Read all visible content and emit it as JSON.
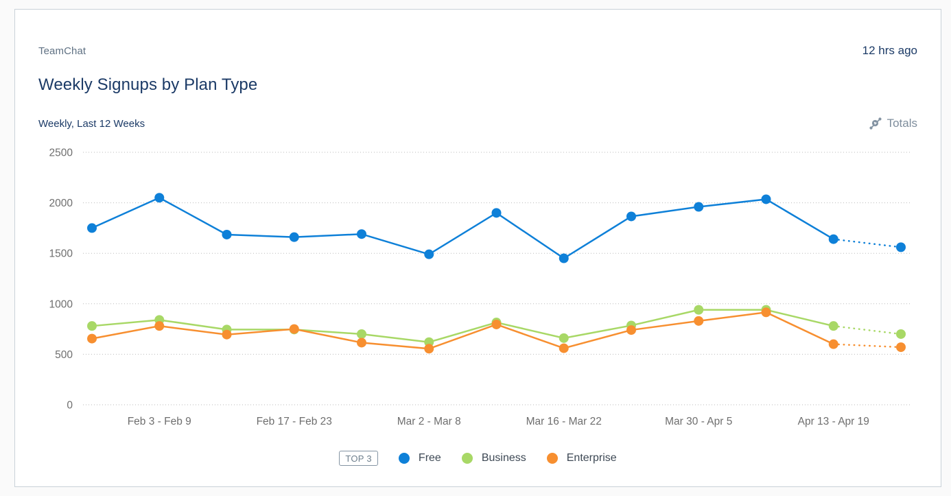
{
  "card": {
    "source_label": "TeamChat",
    "updated_label": "12 hrs ago",
    "title": "Weekly Signups by Plan Type",
    "range_label": "Weekly, Last 12 Weeks",
    "totals_label": "Totals"
  },
  "legend": {
    "badge": "TOP 3",
    "items": [
      {
        "label": "Free",
        "color": "#0e80d8"
      },
      {
        "label": "Business",
        "color": "#a8d866"
      },
      {
        "label": "Enterprise",
        "color": "#f78f30"
      }
    ]
  },
  "colors": {
    "title_text": "#1b3a66",
    "muted_text": "#5f7183",
    "axis_text": "#6e6e6e",
    "gridline": "#b9b9b9",
    "card_border": "#c9d1d8"
  },
  "chart_data": {
    "type": "line",
    "title": "Weekly Signups by Plan Type",
    "subtitle": "Weekly, Last 12 Weeks",
    "xlabel": "",
    "ylabel": "",
    "ylim": [
      0,
      2500
    ],
    "y_ticks": [
      0,
      500,
      1000,
      1500,
      2000,
      2500
    ],
    "grid": "horizontal-dotted",
    "num_points": 13,
    "x_tick_labels": [
      "Feb 3 - Feb 9",
      "Feb 17 - Feb 23",
      "Mar 2 - Mar 8",
      "Mar 16 - Mar 22",
      "Mar 30 - Apr 5",
      "Apr 13 - Apr 19"
    ],
    "x_tick_point_indices": [
      1,
      3,
      5,
      7,
      9,
      11
    ],
    "last_segment_dashed": true,
    "legend_position": "bottom",
    "series": [
      {
        "name": "Free",
        "color": "#0e80d8",
        "values": [
          1750,
          2050,
          1685,
          1660,
          1690,
          1490,
          1900,
          1450,
          1865,
          1960,
          2035,
          1640,
          1560
        ]
      },
      {
        "name": "Business",
        "color": "#a8d866",
        "values": [
          780,
          840,
          745,
          745,
          700,
          620,
          815,
          660,
          785,
          940,
          940,
          780,
          700
        ]
      },
      {
        "name": "Enterprise",
        "color": "#f78f30",
        "values": [
          655,
          780,
          695,
          750,
          615,
          555,
          795,
          560,
          740,
          830,
          915,
          600,
          570
        ]
      }
    ]
  }
}
